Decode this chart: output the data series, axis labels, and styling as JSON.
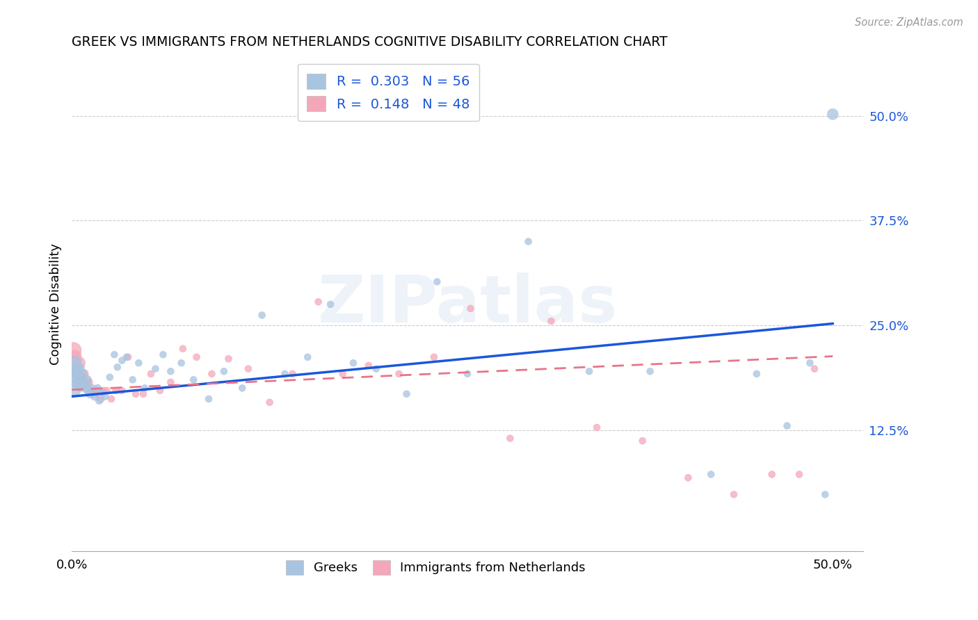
{
  "title": "GREEK VS IMMIGRANTS FROM NETHERLANDS COGNITIVE DISABILITY CORRELATION CHART",
  "source": "Source: ZipAtlas.com",
  "ylabel": "Cognitive Disability",
  "watermark": "ZIPatlas",
  "xlim": [
    0.0,
    0.52
  ],
  "ylim": [
    -0.02,
    0.57
  ],
  "xtick_vals": [
    0.0,
    0.1,
    0.2,
    0.3,
    0.4,
    0.5
  ],
  "xtick_labels": [
    "0.0%",
    "",
    "",
    "",
    "",
    "50.0%"
  ],
  "ytick_vals_right": [
    0.5,
    0.375,
    0.25,
    0.125
  ],
  "ytick_labels_right": [
    "50.0%",
    "37.5%",
    "25.0%",
    "12.5%"
  ],
  "greek_R": 0.303,
  "greek_N": 56,
  "netherlands_R": 0.148,
  "netherlands_N": 48,
  "blue_color": "#a8c4e0",
  "pink_color": "#f4a7b9",
  "blue_line_color": "#1a56db",
  "pink_line_color": "#e8748a",
  "greek_x": [
    0.001,
    0.002,
    0.002,
    0.003,
    0.003,
    0.004,
    0.004,
    0.005,
    0.005,
    0.006,
    0.007,
    0.008,
    0.009,
    0.01,
    0.011,
    0.012,
    0.013,
    0.015,
    0.017,
    0.018,
    0.02,
    0.022,
    0.025,
    0.028,
    0.03,
    0.033,
    0.036,
    0.04,
    0.044,
    0.048,
    0.055,
    0.06,
    0.065,
    0.072,
    0.08,
    0.09,
    0.1,
    0.112,
    0.125,
    0.14,
    0.155,
    0.17,
    0.185,
    0.2,
    0.22,
    0.24,
    0.26,
    0.3,
    0.34,
    0.38,
    0.42,
    0.45,
    0.47,
    0.485,
    0.495,
    0.5
  ],
  "greek_y": [
    0.175,
    0.195,
    0.205,
    0.188,
    0.195,
    0.18,
    0.192,
    0.178,
    0.198,
    0.185,
    0.192,
    0.18,
    0.175,
    0.185,
    0.172,
    0.168,
    0.175,
    0.165,
    0.175,
    0.16,
    0.17,
    0.165,
    0.188,
    0.215,
    0.2,
    0.208,
    0.212,
    0.185,
    0.205,
    0.175,
    0.198,
    0.215,
    0.195,
    0.205,
    0.185,
    0.162,
    0.195,
    0.175,
    0.262,
    0.192,
    0.212,
    0.275,
    0.205,
    0.198,
    0.168,
    0.302,
    0.192,
    0.35,
    0.195,
    0.195,
    0.072,
    0.192,
    0.13,
    0.205,
    0.048,
    0.502
  ],
  "greek_sizes": [
    300,
    250,
    200,
    180,
    160,
    150,
    140,
    130,
    120,
    110,
    100,
    95,
    90,
    85,
    80,
    75,
    70,
    65,
    60,
    58,
    55,
    52,
    50,
    50,
    50,
    50,
    50,
    50,
    50,
    50,
    50,
    50,
    50,
    50,
    50,
    50,
    50,
    50,
    50,
    50,
    50,
    50,
    50,
    50,
    50,
    50,
    50,
    50,
    50,
    50,
    50,
    50,
    50,
    50,
    50,
    130
  ],
  "netherlands_x": [
    0.001,
    0.002,
    0.003,
    0.004,
    0.005,
    0.005,
    0.006,
    0.007,
    0.008,
    0.01,
    0.011,
    0.013,
    0.015,
    0.017,
    0.019,
    0.021,
    0.023,
    0.026,
    0.029,
    0.033,
    0.037,
    0.042,
    0.047,
    0.052,
    0.058,
    0.065,
    0.073,
    0.082,
    0.092,
    0.103,
    0.116,
    0.13,
    0.145,
    0.162,
    0.178,
    0.195,
    0.215,
    0.238,
    0.262,
    0.288,
    0.315,
    0.345,
    0.375,
    0.405,
    0.435,
    0.46,
    0.478,
    0.488
  ],
  "netherlands_y": [
    0.22,
    0.212,
    0.195,
    0.192,
    0.205,
    0.185,
    0.188,
    0.178,
    0.192,
    0.182,
    0.182,
    0.172,
    0.168,
    0.172,
    0.162,
    0.172,
    0.172,
    0.162,
    0.172,
    0.172,
    0.212,
    0.168,
    0.168,
    0.192,
    0.172,
    0.182,
    0.222,
    0.212,
    0.192,
    0.21,
    0.198,
    0.158,
    0.192,
    0.278,
    0.192,
    0.202,
    0.192,
    0.212,
    0.27,
    0.115,
    0.255,
    0.128,
    0.112,
    0.068,
    0.048,
    0.072,
    0.072,
    0.198
  ],
  "netherlands_sizes": [
    280,
    200,
    160,
    140,
    150,
    120,
    110,
    100,
    90,
    80,
    75,
    70,
    65,
    60,
    58,
    55,
    52,
    50,
    50,
    50,
    50,
    50,
    50,
    50,
    50,
    50,
    50,
    50,
    50,
    50,
    50,
    50,
    50,
    50,
    50,
    50,
    50,
    50,
    50,
    50,
    50,
    50,
    50,
    50,
    50,
    50,
    50,
    50
  ]
}
